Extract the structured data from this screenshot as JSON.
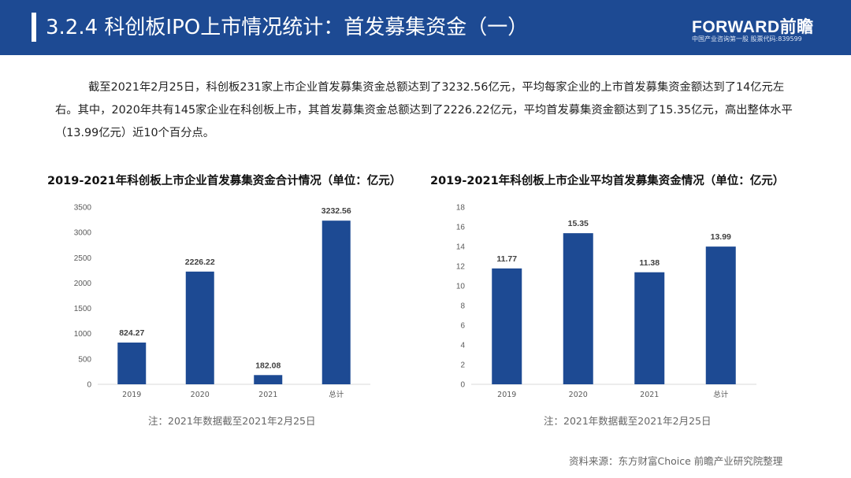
{
  "header": {
    "title": "3.2.4 科创板IPO上市情况统计：首发募集资金（一）",
    "logo_main": "FORWARD前瞻",
    "logo_sub": "中国产业咨询第一股 股票代码:839599"
  },
  "paragraph": "截至2021年2月25日，科创板231家上市企业首发募集资金总额达到了3232.56亿元，平均每家企业的上市首发募集资金额达到了14亿元左右。其中，2020年共有145家企业在科创板上市，其首发募集资金总额达到了2226.22亿元，平均首发募集资金额达到了15.35亿元，高出整体水平（13.99亿元）近10个百分点。",
  "colors": {
    "header_bg": "#1d4a93",
    "bar": "#1d4a93",
    "axis": "#d9d9d9"
  },
  "chart_data": [
    {
      "type": "bar",
      "title": "2019-2021年科创板上市企业首发募集资金合计情况（单位：亿元）",
      "categories": [
        "2019",
        "2020",
        "2021",
        "总计"
      ],
      "values": [
        824.27,
        2226.22,
        182.08,
        3232.56
      ],
      "value_labels": [
        "824.27",
        "2226.22",
        "182.08",
        "3232.56"
      ],
      "yticks": [
        "0",
        "500",
        "1000",
        "1500",
        "2000",
        "2500",
        "3000",
        "3500"
      ],
      "ylim": [
        0,
        3500
      ],
      "grid": false,
      "note": "注：2021年数据截至2021年2月25日"
    },
    {
      "type": "bar",
      "title": "2019-2021年科创板上市企业平均首发募集资金情况（单位：亿元）",
      "categories": [
        "2019",
        "2020",
        "2021",
        "总计"
      ],
      "values": [
        11.77,
        15.35,
        11.38,
        13.99
      ],
      "value_labels": [
        "11.77",
        "15.35",
        "11.38",
        "13.99"
      ],
      "yticks": [
        "0",
        "2",
        "4",
        "6",
        "8",
        "10",
        "12",
        "14",
        "16",
        "18"
      ],
      "ylim": [
        0,
        18
      ],
      "grid": false,
      "note": "注：2021年数据截至2021年2月25日"
    }
  ],
  "source": "资料来源：东方财富Choice 前瞻产业研究院整理"
}
